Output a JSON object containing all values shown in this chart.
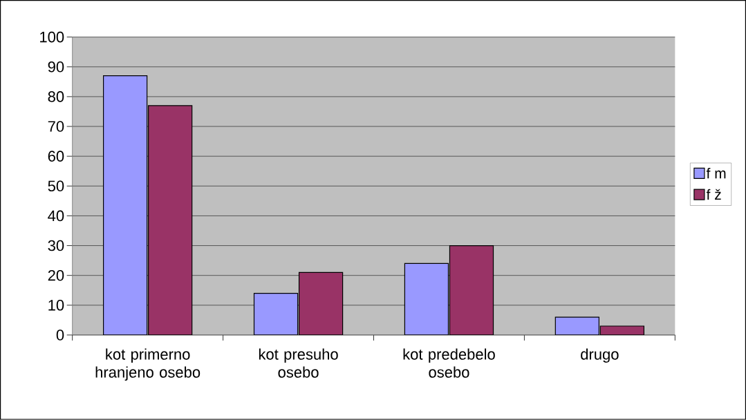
{
  "chart_data": {
    "type": "bar",
    "categories": [
      "kot primerno hranjeno osebo",
      "kot presuho osebo",
      "kot predebelo osebo",
      "drugo"
    ],
    "series": [
      {
        "name": "f m",
        "color": "#9999ff",
        "values": [
          87,
          14,
          24,
          6
        ]
      },
      {
        "name": "f ž",
        "color": "#993366",
        "values": [
          77,
          21,
          30,
          3
        ]
      }
    ],
    "ylim": [
      0,
      100
    ],
    "yticks": [
      0,
      10,
      20,
      30,
      40,
      50,
      60,
      70,
      80,
      90,
      100
    ],
    "grid": "y",
    "legend": "right"
  }
}
